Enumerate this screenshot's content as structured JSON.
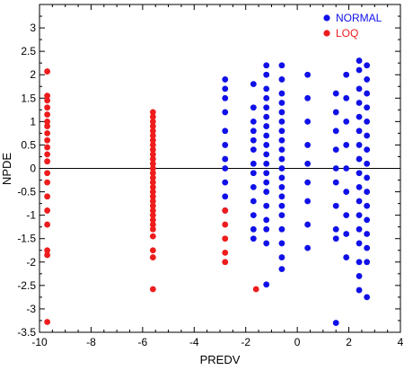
{
  "chart_data": {
    "type": "scatter",
    "title": "",
    "xlabel": "PREDV",
    "ylabel": "NPDE",
    "xlim": [
      -10,
      4
    ],
    "ylim": [
      -3.5,
      3.5
    ],
    "x_ticks": [
      -10,
      -8,
      -6,
      -4,
      -2,
      0,
      2,
      4
    ],
    "y_ticks": [
      -3.5,
      -3,
      -2.5,
      -2,
      -1.5,
      -1,
      -0.5,
      0,
      0.5,
      1,
      1.5,
      2,
      2.5,
      3
    ],
    "grid": false,
    "legend_position": "top-right",
    "reference_line_y": 0,
    "series": [
      {
        "name": "NORMAL",
        "color": "#1010e8",
        "points": [
          [
            -2.8,
            1.9
          ],
          [
            -2.8,
            1.7
          ],
          [
            -2.8,
            1.5
          ],
          [
            -2.8,
            1.2
          ],
          [
            -2.8,
            0.8
          ],
          [
            -2.8,
            0.5
          ],
          [
            -2.8,
            0.2
          ],
          [
            -2.8,
            0.0
          ],
          [
            -2.8,
            -0.3
          ],
          [
            -2.8,
            -0.6
          ],
          [
            -2.8,
            -0.9
          ],
          [
            -1.7,
            1.8
          ],
          [
            -1.7,
            1.3
          ],
          [
            -1.7,
            1.0
          ],
          [
            -1.7,
            0.8
          ],
          [
            -1.7,
            0.6
          ],
          [
            -1.7,
            0.4
          ],
          [
            -1.7,
            0.1
          ],
          [
            -1.7,
            -0.1
          ],
          [
            -1.7,
            -0.4
          ],
          [
            -1.7,
            -0.7
          ],
          [
            -1.7,
            -1.0
          ],
          [
            -1.7,
            -1.3
          ],
          [
            -1.7,
            -1.5
          ],
          [
            -1.2,
            2.2
          ],
          [
            -1.2,
            2.0
          ],
          [
            -1.2,
            1.7
          ],
          [
            -1.2,
            1.5
          ],
          [
            -1.2,
            1.3
          ],
          [
            -1.2,
            1.1
          ],
          [
            -1.2,
            0.9
          ],
          [
            -1.2,
            0.7
          ],
          [
            -1.2,
            0.5
          ],
          [
            -1.2,
            0.3
          ],
          [
            -1.2,
            0.1
          ],
          [
            -1.2,
            -0.1
          ],
          [
            -1.2,
            -0.3
          ],
          [
            -1.2,
            -0.5
          ],
          [
            -1.2,
            -0.8
          ],
          [
            -1.2,
            -1.1
          ],
          [
            -1.2,
            -1.3
          ],
          [
            -1.2,
            -1.6
          ],
          [
            -1.2,
            -2.48
          ],
          [
            -0.6,
            2.2
          ],
          [
            -0.6,
            1.9
          ],
          [
            -0.6,
            1.6
          ],
          [
            -0.6,
            1.4
          ],
          [
            -0.6,
            1.2
          ],
          [
            -0.6,
            1.0
          ],
          [
            -0.6,
            0.8
          ],
          [
            -0.6,
            0.6
          ],
          [
            -0.6,
            0.4
          ],
          [
            -0.6,
            0.2
          ],
          [
            -0.6,
            0.0
          ],
          [
            -0.6,
            -0.2
          ],
          [
            -0.6,
            -0.4
          ],
          [
            -0.6,
            -0.6
          ],
          [
            -0.6,
            -0.8
          ],
          [
            -0.6,
            -1.0
          ],
          [
            -0.6,
            -1.3
          ],
          [
            -0.6,
            -1.6
          ],
          [
            -0.6,
            -1.9
          ],
          [
            -0.6,
            -2.15
          ],
          [
            0.4,
            2.0
          ],
          [
            0.4,
            1.5
          ],
          [
            0.4,
            1.0
          ],
          [
            0.4,
            0.5
          ],
          [
            0.4,
            0.1
          ],
          [
            0.4,
            -0.3
          ],
          [
            0.4,
            -0.7
          ],
          [
            0.4,
            -1.2
          ],
          [
            0.4,
            -1.7
          ],
          [
            1.5,
            1.6
          ],
          [
            1.5,
            1.2
          ],
          [
            1.5,
            0.8
          ],
          [
            1.5,
            0.4
          ],
          [
            1.5,
            0.0
          ],
          [
            1.5,
            -0.3
          ],
          [
            1.5,
            -0.8
          ],
          [
            1.5,
            -1.3
          ],
          [
            1.5,
            -1.5
          ],
          [
            1.5,
            -3.3
          ],
          [
            1.9,
            2.0
          ],
          [
            1.9,
            1.5
          ],
          [
            1.9,
            1.0
          ],
          [
            1.9,
            0.5
          ],
          [
            1.9,
            0.0
          ],
          [
            1.9,
            -0.5
          ],
          [
            1.9,
            -1.0
          ],
          [
            1.9,
            -1.4
          ],
          [
            1.9,
            -1.9
          ],
          [
            2.4,
            2.3
          ],
          [
            2.4,
            2.1
          ],
          [
            2.4,
            1.7
          ],
          [
            2.4,
            1.4
          ],
          [
            2.4,
            1.1
          ],
          [
            2.4,
            0.8
          ],
          [
            2.4,
            0.5
          ],
          [
            2.4,
            0.2
          ],
          [
            2.4,
            -0.1
          ],
          [
            2.4,
            -0.4
          ],
          [
            2.4,
            -0.7
          ],
          [
            2.4,
            -1.0
          ],
          [
            2.4,
            -1.3
          ],
          [
            2.4,
            -1.6
          ],
          [
            2.4,
            -2.0
          ],
          [
            2.4,
            -2.3
          ],
          [
            2.4,
            -2.6
          ],
          [
            2.7,
            2.2
          ],
          [
            2.7,
            1.9
          ],
          [
            2.7,
            1.6
          ],
          [
            2.7,
            1.3
          ],
          [
            2.7,
            1.0
          ],
          [
            2.7,
            0.7
          ],
          [
            2.7,
            0.4
          ],
          [
            2.7,
            0.1
          ],
          [
            2.7,
            -0.2
          ],
          [
            2.7,
            -0.5
          ],
          [
            2.7,
            -0.8
          ],
          [
            2.7,
            -1.1
          ],
          [
            2.7,
            -1.4
          ],
          [
            2.7,
            -1.7
          ],
          [
            2.7,
            -2.0
          ],
          [
            2.7,
            -2.75
          ]
        ]
      },
      {
        "name": "LOQ",
        "color": "#ee1c1c",
        "points": [
          [
            -9.7,
            2.07
          ],
          [
            -9.7,
            1.55
          ],
          [
            -9.7,
            1.45
          ],
          [
            -9.7,
            1.3
          ],
          [
            -9.7,
            1.15
          ],
          [
            -9.7,
            1.0
          ],
          [
            -9.7,
            0.9
          ],
          [
            -9.7,
            0.75
          ],
          [
            -9.7,
            0.6
          ],
          [
            -9.7,
            0.45
          ],
          [
            -9.7,
            0.3
          ],
          [
            -9.7,
            0.15
          ],
          [
            -9.7,
            -0.1
          ],
          [
            -9.7,
            -0.3
          ],
          [
            -9.7,
            -0.6
          ],
          [
            -9.7,
            -0.9
          ],
          [
            -9.7,
            -1.2
          ],
          [
            -9.7,
            -1.75
          ],
          [
            -9.7,
            -1.85
          ],
          [
            -9.7,
            -3.28
          ],
          [
            -5.6,
            1.2
          ],
          [
            -5.6,
            1.1
          ],
          [
            -5.6,
            1.0
          ],
          [
            -5.6,
            0.9
          ],
          [
            -5.6,
            0.8
          ],
          [
            -5.6,
            0.7
          ],
          [
            -5.6,
            0.6
          ],
          [
            -5.6,
            0.5
          ],
          [
            -5.6,
            0.4
          ],
          [
            -5.6,
            0.3
          ],
          [
            -5.6,
            0.2
          ],
          [
            -5.6,
            0.1
          ],
          [
            -5.6,
            0.0
          ],
          [
            -5.6,
            -0.1
          ],
          [
            -5.6,
            -0.2
          ],
          [
            -5.6,
            -0.3
          ],
          [
            -5.6,
            -0.4
          ],
          [
            -5.6,
            -0.5
          ],
          [
            -5.6,
            -0.6
          ],
          [
            -5.6,
            -0.7
          ],
          [
            -5.6,
            -0.8
          ],
          [
            -5.6,
            -0.9
          ],
          [
            -5.6,
            -1.0
          ],
          [
            -5.6,
            -1.1
          ],
          [
            -5.6,
            -1.2
          ],
          [
            -5.6,
            -1.3
          ],
          [
            -5.6,
            -1.45
          ],
          [
            -5.6,
            -1.75
          ],
          [
            -5.6,
            -1.9
          ],
          [
            -5.6,
            -2.58
          ],
          [
            -2.8,
            -0.9
          ],
          [
            -2.8,
            -1.2
          ],
          [
            -2.8,
            -1.5
          ],
          [
            -2.8,
            -1.8
          ],
          [
            -2.8,
            -2.0
          ],
          [
            -1.6,
            -2.58
          ]
        ]
      }
    ]
  }
}
